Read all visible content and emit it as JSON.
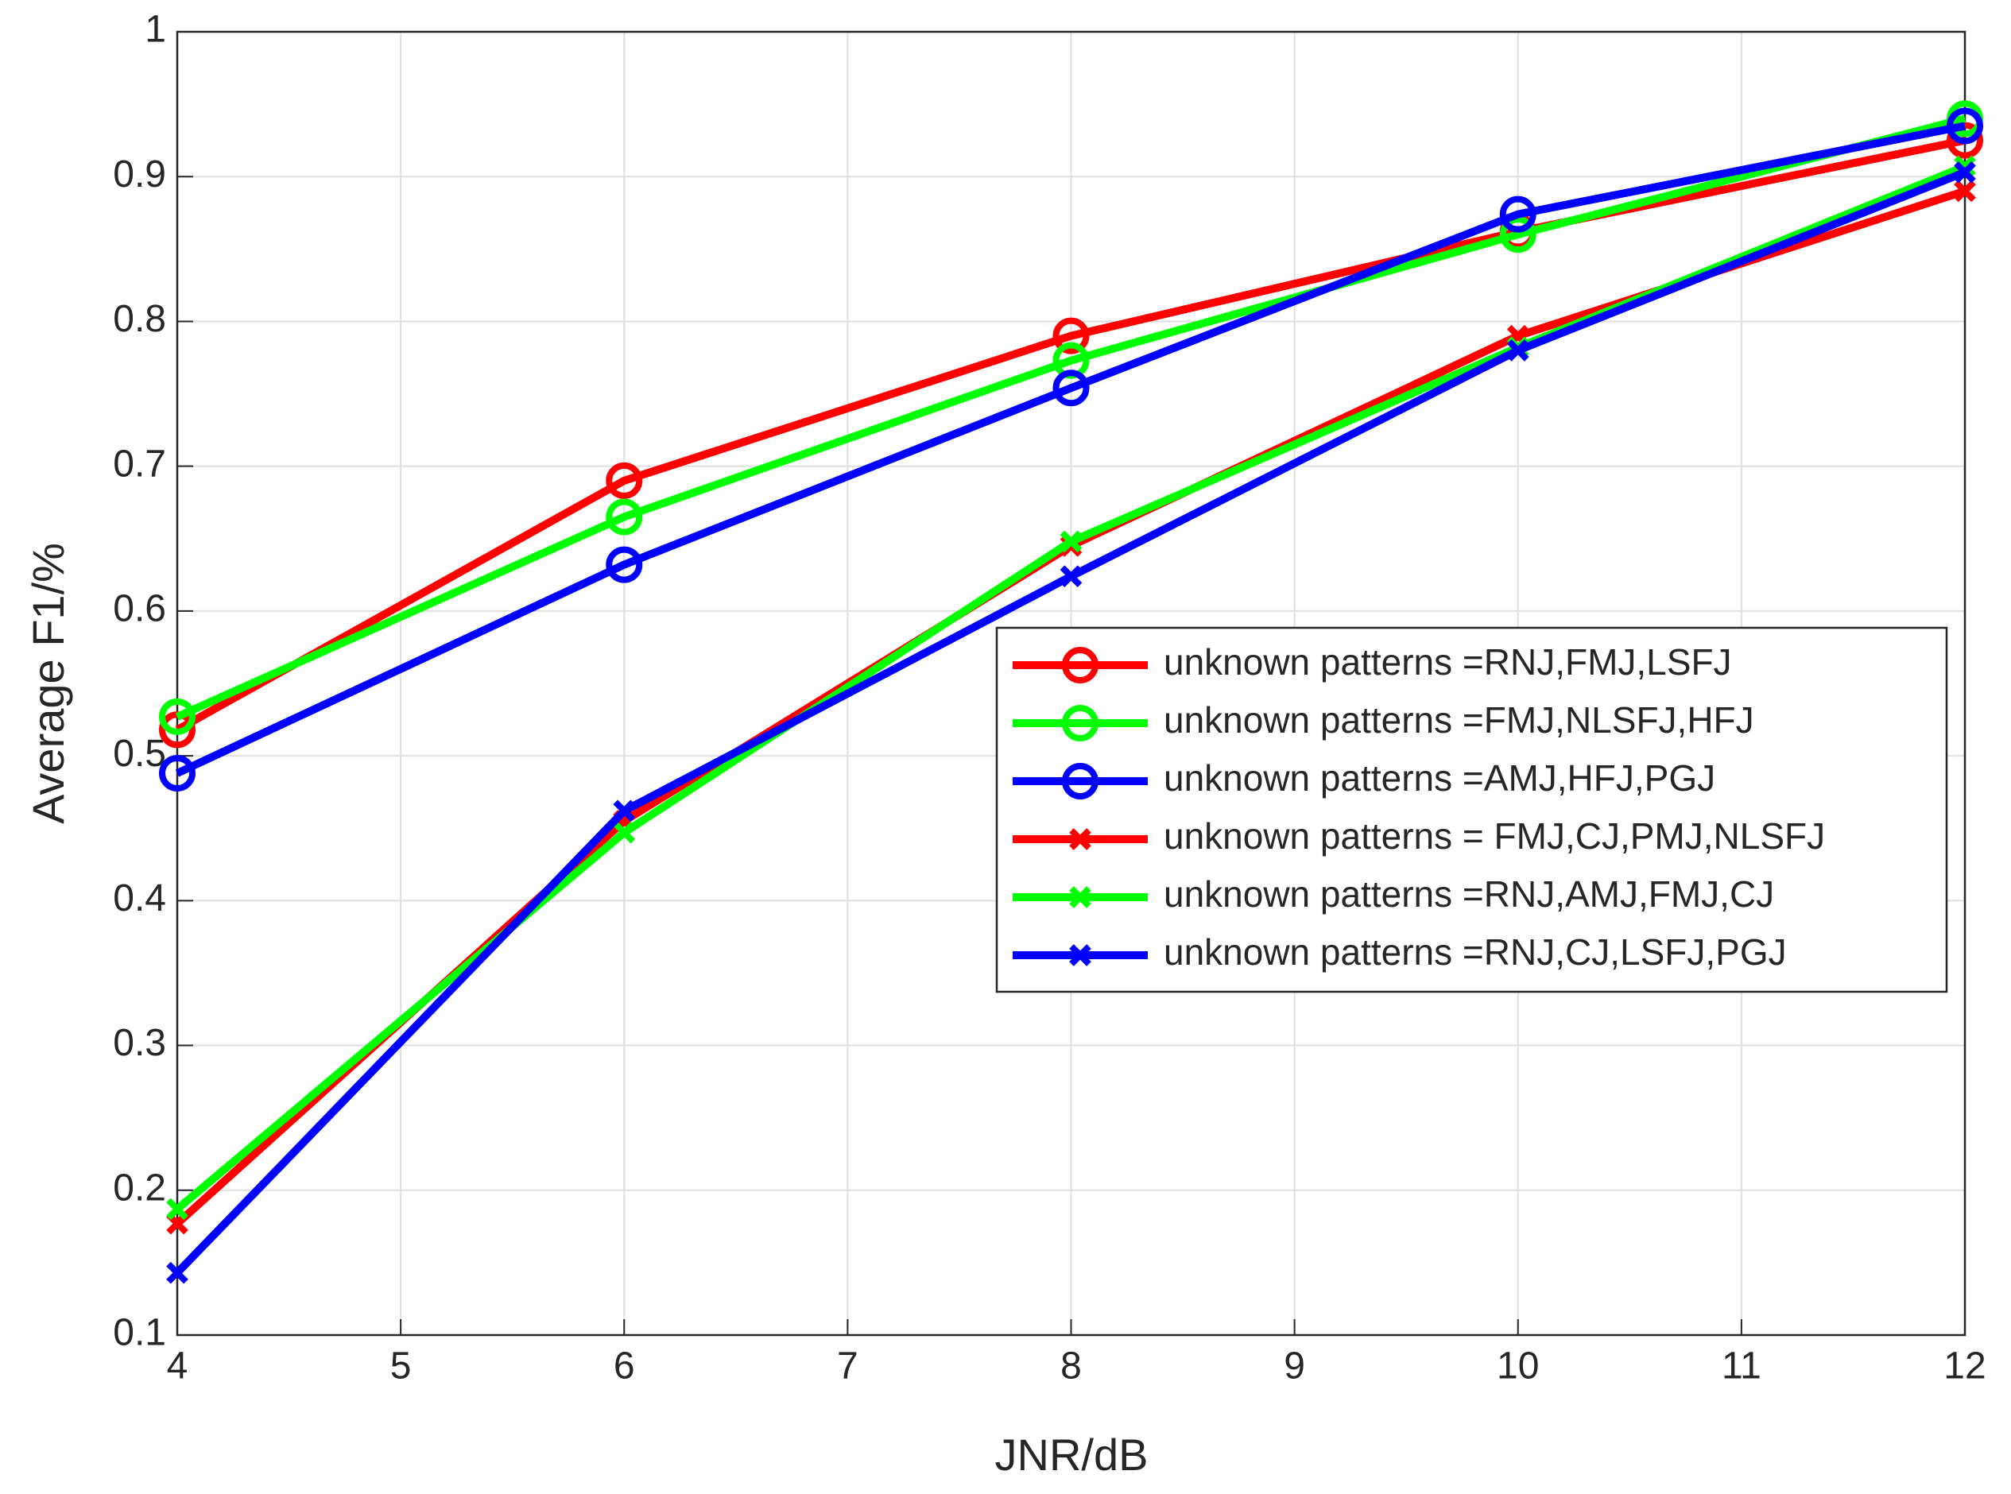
{
  "chart_data": {
    "type": "line",
    "x_label": "JNR/dB",
    "y_label": "Average F1/%",
    "x": [
      4,
      6,
      8,
      10,
      12
    ],
    "series": [
      {
        "name": "unknown patterns =RNJ,FMJ,LSFJ",
        "color": "#ff0000",
        "marker": "circle",
        "values": [
          0.518,
          0.69,
          0.79,
          0.862,
          0.925
        ]
      },
      {
        "name": "unknown patterns =FMJ,NLSFJ,HFJ",
        "color": "#00ff00",
        "marker": "circle",
        "values": [
          0.527,
          0.665,
          0.773,
          0.86,
          0.94
        ]
      },
      {
        "name": "unknown patterns =AMJ,HFJ,PGJ",
        "color": "#0000ff",
        "marker": "circle",
        "values": [
          0.488,
          0.632,
          0.754,
          0.874,
          0.935
        ]
      },
      {
        "name": "unknown patterns = FMJ,CJ,PMJ,NLSFJ",
        "color": "#ff0000",
        "marker": "x",
        "values": [
          0.177,
          0.455,
          0.645,
          0.79,
          0.89
        ]
      },
      {
        "name": "unknown patterns =RNJ,AMJ,FMJ,CJ",
        "color": "#00ff00",
        "marker": "x",
        "values": [
          0.187,
          0.447,
          0.648,
          0.782,
          0.907
        ]
      },
      {
        "name": "unknown patterns =RNJ,CJ,LSFJ,PGJ",
        "color": "#0000ff",
        "marker": "x",
        "values": [
          0.143,
          0.462,
          0.624,
          0.78,
          0.903
        ]
      }
    ],
    "xlim": [
      4,
      12
    ],
    "xticks": [
      4,
      5,
      6,
      7,
      8,
      9,
      10,
      11,
      12
    ],
    "ylim": [
      0.1,
      1
    ],
    "yticks": [
      0.1,
      0.2,
      0.3,
      0.4,
      0.5,
      0.6,
      0.7,
      0.8,
      0.9,
      1
    ],
    "grid": true,
    "legend_position": "east"
  }
}
